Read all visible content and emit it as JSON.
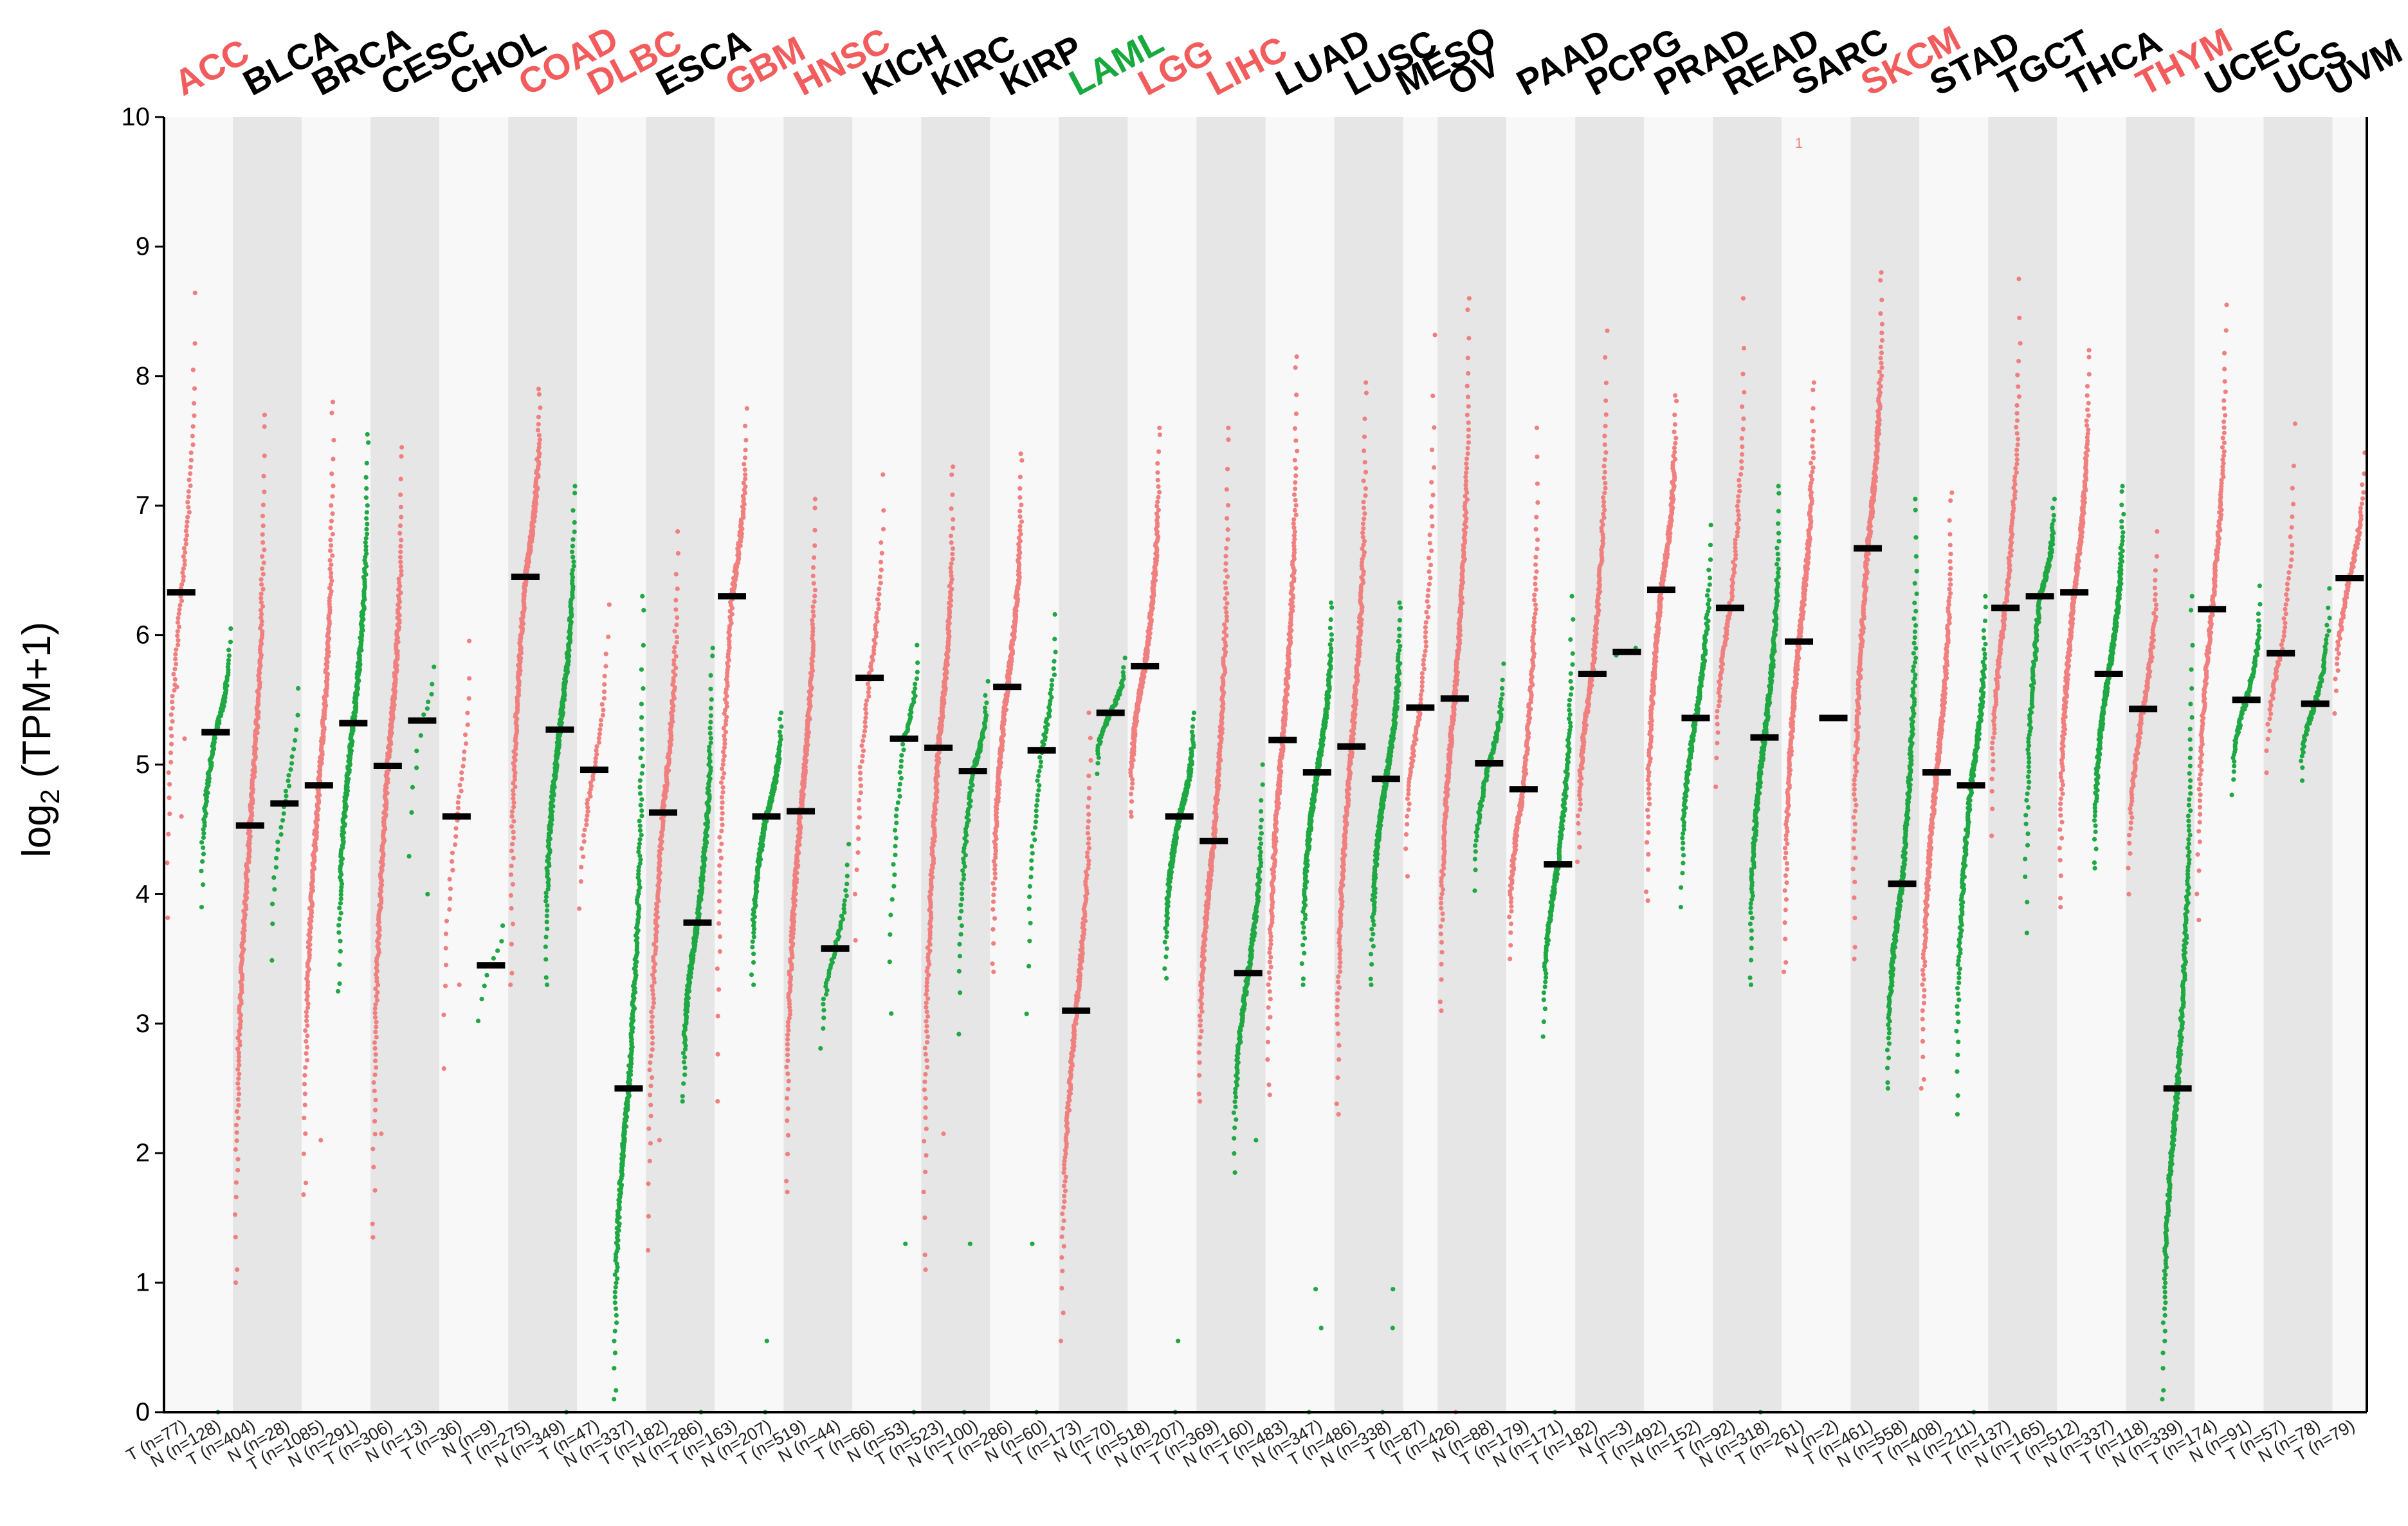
{
  "chart_data": {
    "type": "scatter",
    "title": "",
    "ylabel_base": "log",
    "ylabel_sub": "2",
    "ylabel_rest": " (TPM+1)",
    "ylim": [
      0,
      10
    ],
    "yticks": [
      "0",
      "1",
      "2",
      "3",
      "4",
      "5",
      "6",
      "7",
      "8",
      "9",
      "10"
    ],
    "colors": {
      "tumor": "#f08080",
      "normal": "#1fa843",
      "median": "#000000",
      "band_dark": "#e6e6e6",
      "band_light": "#f8f8f8",
      "label_default": "#000000",
      "label_up": "#f25c5c",
      "label_down": "#17a83e"
    },
    "annotation": "1",
    "cancers": [
      {
        "name": "ACC",
        "color": "up",
        "groups": [
          {
            "t": "T",
            "n": "77",
            "median": 6.33,
            "min": 3.7,
            "max": 8.75,
            "outliers": [
              4.6,
              5.2,
              5.6
            ]
          },
          {
            "t": "N",
            "n": "128",
            "median": 5.25,
            "min": 3.9,
            "max": 6.05,
            "outliers": [
              0.0
            ]
          }
        ]
      },
      {
        "name": "BLCA",
        "color": "default",
        "groups": [
          {
            "t": "T",
            "n": "404",
            "median": 4.53,
            "min": 1.0,
            "max": 7.7,
            "outliers": []
          },
          {
            "t": "N",
            "n": "28",
            "median": 4.7,
            "min": 3.2,
            "max": 5.8,
            "outliers": []
          }
        ]
      },
      {
        "name": "BRCA",
        "color": "default",
        "groups": [
          {
            "t": "T",
            "n": "1085",
            "median": 4.84,
            "min": 1.68,
            "max": 7.8,
            "outliers": [
              2.1
            ]
          },
          {
            "t": "N",
            "n": "291",
            "median": 5.32,
            "min": 3.25,
            "max": 7.55,
            "outliers": []
          }
        ]
      },
      {
        "name": "CESC",
        "color": "default",
        "groups": [
          {
            "t": "T",
            "n": "306",
            "median": 4.99,
            "min": 1.35,
            "max": 7.45,
            "outliers": [
              2.15
            ]
          },
          {
            "t": "N",
            "n": "13",
            "median": 5.34,
            "min": 3.8,
            "max": 5.95,
            "outliers": [
              4.0
            ]
          }
        ]
      },
      {
        "name": "CHOL",
        "color": "default",
        "groups": [
          {
            "t": "T",
            "n": "36",
            "median": 4.6,
            "min": 2.3,
            "max": 6.2,
            "outliers": [
              3.3
            ]
          },
          {
            "t": "N",
            "n": "9",
            "median": 3.45,
            "min": 2.75,
            "max": 3.95,
            "outliers": []
          }
        ]
      },
      {
        "name": "COAD",
        "color": "up",
        "groups": [
          {
            "t": "T",
            "n": "275",
            "median": 6.45,
            "min": 3.3,
            "max": 7.9,
            "outliers": []
          },
          {
            "t": "N",
            "n": "349",
            "median": 5.27,
            "min": 3.3,
            "max": 7.15,
            "outliers": [
              0.0
            ]
          }
        ]
      },
      {
        "name": "DLBC",
        "color": "up",
        "groups": [
          {
            "t": "T",
            "n": "47",
            "median": 4.96,
            "min": 3.75,
            "max": 6.4,
            "outliers": []
          },
          {
            "t": "N",
            "n": "337",
            "median": 2.5,
            "min": 0.1,
            "max": 6.3,
            "outliers": []
          }
        ]
      },
      {
        "name": "ESCA",
        "color": "default",
        "groups": [
          {
            "t": "T",
            "n": "182",
            "median": 4.63,
            "min": 1.25,
            "max": 6.8,
            "outliers": [
              2.1
            ]
          },
          {
            "t": "N",
            "n": "286",
            "median": 3.78,
            "min": 2.4,
            "max": 5.9,
            "outliers": [
              0.0
            ]
          }
        ]
      },
      {
        "name": "GBM",
        "color": "up",
        "groups": [
          {
            "t": "T",
            "n": "163",
            "median": 6.3,
            "min": 2.4,
            "max": 7.75,
            "outliers": []
          },
          {
            "t": "N",
            "n": "207",
            "median": 4.6,
            "min": 3.3,
            "max": 5.4,
            "outliers": [
              0.55,
              0.0
            ]
          }
        ]
      },
      {
        "name": "HNSC",
        "color": "up",
        "groups": [
          {
            "t": "T",
            "n": "519",
            "median": 4.64,
            "min": 1.7,
            "max": 7.05,
            "outliers": []
          },
          {
            "t": "N",
            "n": "44",
            "median": 3.58,
            "min": 2.7,
            "max": 4.5,
            "outliers": []
          }
        ]
      },
      {
        "name": "KICH",
        "color": "default",
        "groups": [
          {
            "t": "T",
            "n": "66",
            "median": 5.67,
            "min": 3.5,
            "max": 7.35,
            "outliers": []
          },
          {
            "t": "N",
            "n": "53",
            "median": 5.2,
            "min": 2.85,
            "max": 6.0,
            "outliers": [
              1.3,
              0.0
            ]
          }
        ]
      },
      {
        "name": "KIRC",
        "color": "default",
        "groups": [
          {
            "t": "T",
            "n": "523",
            "median": 5.13,
            "min": 1.1,
            "max": 7.3,
            "outliers": [
              2.15
            ]
          },
          {
            "t": "N",
            "n": "100",
            "median": 4.95,
            "min": 2.9,
            "max": 5.65,
            "outliers": [
              1.3,
              0.0
            ]
          }
        ]
      },
      {
        "name": "KIRP",
        "color": "default",
        "groups": [
          {
            "t": "T",
            "n": "286",
            "median": 5.6,
            "min": 3.4,
            "max": 7.4,
            "outliers": []
          },
          {
            "t": "N",
            "n": "60",
            "median": 5.11,
            "min": 2.9,
            "max": 6.25,
            "outliers": [
              1.3,
              0.0
            ]
          }
        ]
      },
      {
        "name": "LAML",
        "color": "down",
        "groups": [
          {
            "t": "T",
            "n": "173",
            "median": 3.1,
            "min": 0.55,
            "max": 5.4,
            "outliers": []
          },
          {
            "t": "N",
            "n": "70",
            "median": 5.4,
            "min": 4.9,
            "max": 5.85,
            "outliers": []
          }
        ]
      },
      {
        "name": "LGG",
        "color": "up",
        "groups": [
          {
            "t": "T",
            "n": "518",
            "median": 5.76,
            "min": 4.6,
            "max": 7.6,
            "outliers": []
          },
          {
            "t": "N",
            "n": "207",
            "median": 4.6,
            "min": 3.35,
            "max": 5.4,
            "outliers": [
              0.55,
              0.0
            ]
          }
        ]
      },
      {
        "name": "LIHC",
        "color": "up",
        "groups": [
          {
            "t": "T",
            "n": "369",
            "median": 4.41,
            "min": 2.4,
            "max": 7.6,
            "outliers": []
          },
          {
            "t": "N",
            "n": "160",
            "median": 3.39,
            "min": 1.85,
            "max": 5.0,
            "outliers": [
              2.1
            ]
          }
        ]
      },
      {
        "name": "LUAD",
        "color": "default",
        "groups": [
          {
            "t": "T",
            "n": "483",
            "median": 5.19,
            "min": 2.45,
            "max": 8.15,
            "outliers": []
          },
          {
            "t": "N",
            "n": "347",
            "median": 4.94,
            "min": 3.3,
            "max": 6.25,
            "outliers": [
              0.95,
              0.65,
              0.0
            ]
          }
        ]
      },
      {
        "name": "LUSC",
        "color": "default",
        "groups": [
          {
            "t": "T",
            "n": "486",
            "median": 5.14,
            "min": 2.3,
            "max": 7.95,
            "outliers": []
          },
          {
            "t": "N",
            "n": "338",
            "median": 4.89,
            "min": 3.3,
            "max": 6.25,
            "outliers": [
              0.95,
              0.65,
              0.0
            ]
          }
        ]
      },
      {
        "name": "MESO",
        "color": "default",
        "groups": [
          {
            "t": "T",
            "n": "87",
            "median": 5.44,
            "min": 4.1,
            "max": 8.4,
            "outliers": []
          }
        ]
      },
      {
        "name": "OV",
        "color": "default",
        "groups": [
          {
            "t": "T",
            "n": "426",
            "median": 5.51,
            "min": 3.1,
            "max": 8.6,
            "outliers": [
              0.0
            ]
          },
          {
            "t": "N",
            "n": "88",
            "median": 5.01,
            "min": 4.0,
            "max": 5.8,
            "outliers": []
          }
        ]
      },
      {
        "name": "PAAD",
        "color": "default",
        "groups": [
          {
            "t": "T",
            "n": "179",
            "median": 4.81,
            "min": 3.5,
            "max": 7.6,
            "outliers": []
          },
          {
            "t": "N",
            "n": "171",
            "median": 4.23,
            "min": 2.9,
            "max": 6.3,
            "outliers": [
              0.0
            ]
          }
        ]
      },
      {
        "name": "PCPG",
        "color": "default",
        "groups": [
          {
            "t": "T",
            "n": "182",
            "median": 5.7,
            "min": 4.25,
            "max": 8.35,
            "outliers": []
          },
          {
            "t": "N",
            "n": "3",
            "median": 5.87,
            "min": 5.8,
            "max": 5.95,
            "outliers": []
          }
        ]
      },
      {
        "name": "PRAD",
        "color": "default",
        "groups": [
          {
            "t": "T",
            "n": "492",
            "median": 6.35,
            "min": 3.95,
            "max": 7.85,
            "outliers": []
          },
          {
            "t": "N",
            "n": "152",
            "median": 5.36,
            "min": 3.9,
            "max": 6.85,
            "outliers": []
          }
        ]
      },
      {
        "name": "READ",
        "color": "default",
        "groups": [
          {
            "t": "T",
            "n": "92",
            "median": 6.21,
            "min": 4.8,
            "max": 8.65,
            "outliers": []
          },
          {
            "t": "N",
            "n": "318",
            "median": 5.21,
            "min": 3.3,
            "max": 7.15,
            "outliers": [
              0.0
            ]
          }
        ]
      },
      {
        "name": "SARC",
        "color": "default",
        "groups": [
          {
            "t": "T",
            "n": "261",
            "median": 5.95,
            "min": 3.4,
            "max": 7.95,
            "outliers": []
          },
          {
            "t": "N",
            "n": "2",
            "median": 5.36,
            "min": 5.35,
            "max": 5.37,
            "outliers": []
          }
        ]
      },
      {
        "name": "SKCM",
        "color": "up",
        "groups": [
          {
            "t": "T",
            "n": "461",
            "median": 6.67,
            "min": 3.5,
            "max": 8.8,
            "outliers": []
          },
          {
            "t": "N",
            "n": "558",
            "median": 4.08,
            "min": 2.5,
            "max": 7.05,
            "outliers": []
          }
        ]
      },
      {
        "name": "STAD",
        "color": "default",
        "groups": [
          {
            "t": "T",
            "n": "408",
            "median": 4.94,
            "min": 2.5,
            "max": 7.1,
            "outliers": []
          },
          {
            "t": "N",
            "n": "211",
            "median": 4.84,
            "min": 2.3,
            "max": 6.3,
            "outliers": [
              0.0
            ]
          }
        ]
      },
      {
        "name": "TGCT",
        "color": "default",
        "groups": [
          {
            "t": "T",
            "n": "137",
            "median": 6.21,
            "min": 4.45,
            "max": 8.75,
            "outliers": []
          },
          {
            "t": "N",
            "n": "165",
            "median": 6.3,
            "min": 3.7,
            "max": 7.05,
            "outliers": []
          }
        ]
      },
      {
        "name": "THCA",
        "color": "default",
        "groups": [
          {
            "t": "T",
            "n": "512",
            "median": 6.33,
            "min": 3.9,
            "max": 8.2,
            "outliers": []
          },
          {
            "t": "N",
            "n": "337",
            "median": 5.7,
            "min": 4.2,
            "max": 7.15,
            "outliers": []
          }
        ]
      },
      {
        "name": "THYM",
        "color": "up",
        "groups": [
          {
            "t": "T",
            "n": "118",
            "median": 5.43,
            "min": 4.0,
            "max": 6.8,
            "outliers": []
          },
          {
            "t": "N",
            "n": "339",
            "median": 2.5,
            "min": 0.1,
            "max": 6.3,
            "outliers": []
          }
        ]
      },
      {
        "name": "UCEC",
        "color": "default",
        "groups": [
          {
            "t": "T",
            "n": "174",
            "median": 6.2,
            "min": 3.8,
            "max": 8.55,
            "outliers": []
          },
          {
            "t": "N",
            "n": "91",
            "median": 5.5,
            "min": 4.75,
            "max": 6.4,
            "outliers": []
          }
        ]
      },
      {
        "name": "UCS",
        "color": "default",
        "groups": [
          {
            "t": "T",
            "n": "57",
            "median": 5.86,
            "min": 4.85,
            "max": 7.8,
            "outliers": []
          },
          {
            "t": "N",
            "n": "78",
            "median": 5.47,
            "min": 4.85,
            "max": 6.4,
            "outliers": []
          }
        ]
      },
      {
        "name": "UVM",
        "color": "default",
        "groups": [
          {
            "t": "T",
            "n": "79",
            "median": 6.44,
            "min": 5.35,
            "max": 7.45,
            "outliers": []
          }
        ]
      }
    ]
  }
}
